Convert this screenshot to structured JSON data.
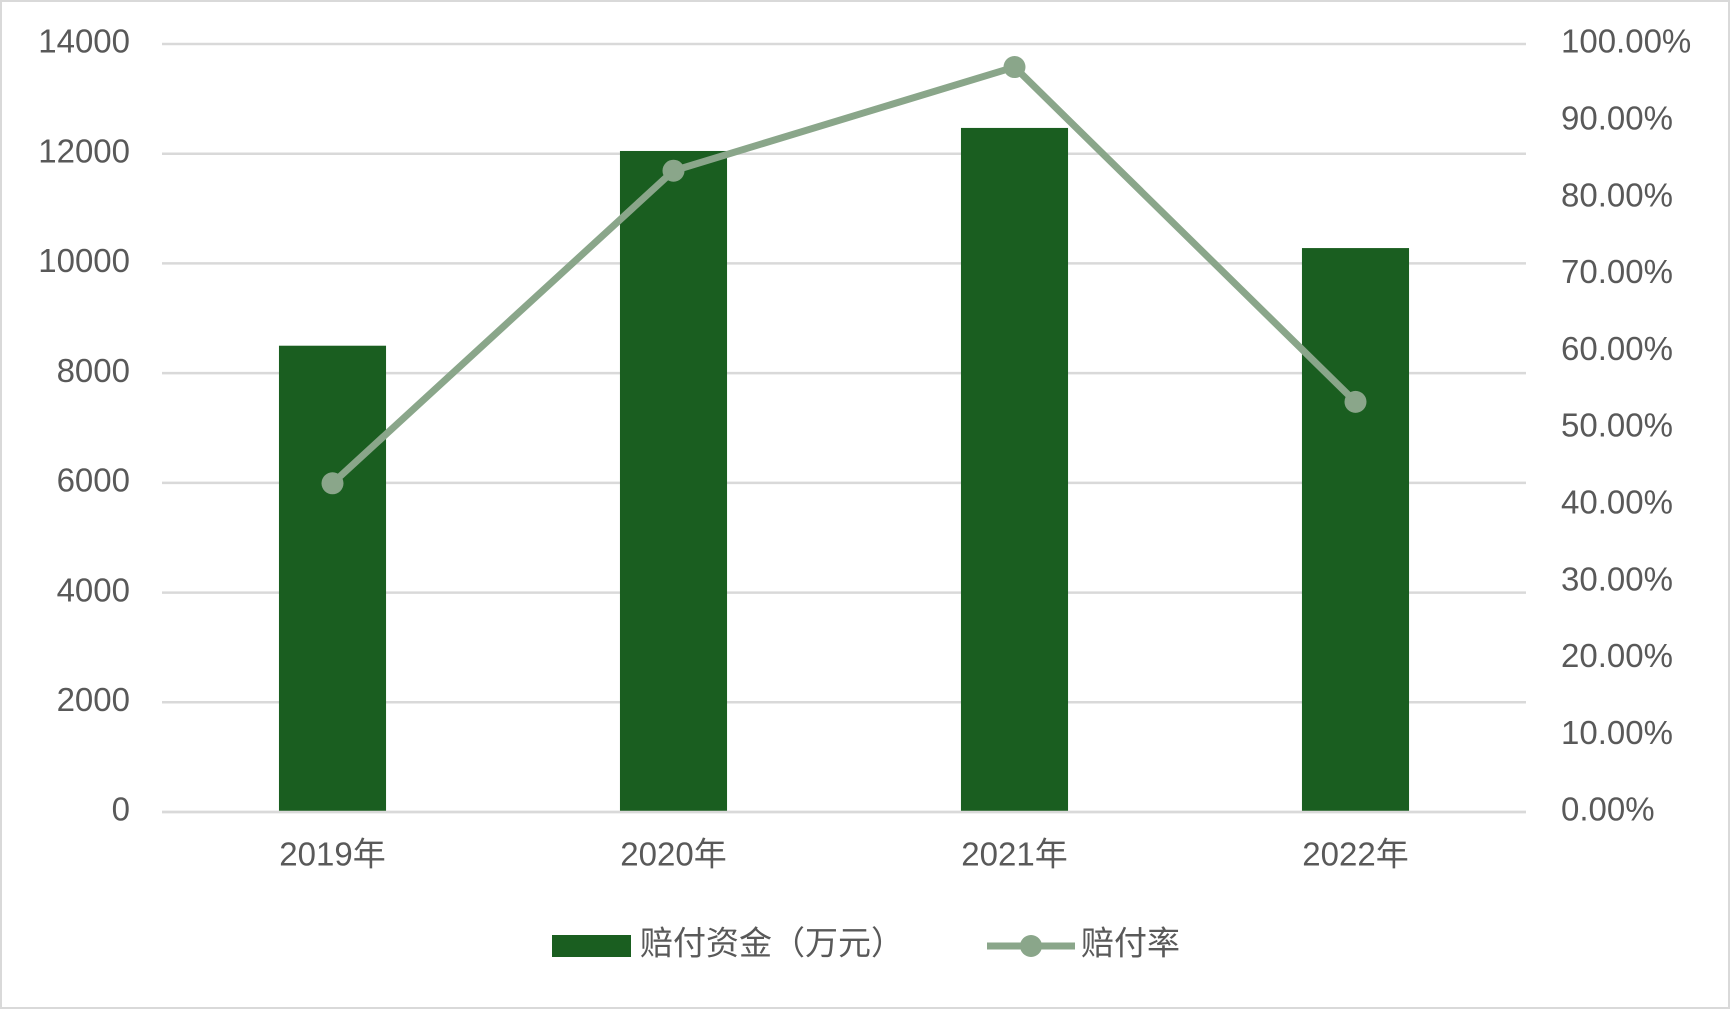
{
  "chart_data": {
    "type": "bar",
    "categories": [
      "2019年",
      "2020年",
      "2021年",
      "2022年"
    ],
    "series": [
      {
        "name": "赔付资金（万元）",
        "type": "bar",
        "color": "#1a5e20",
        "values": [
          8500,
          12050,
          12470,
          10280
        ]
      },
      {
        "name": "赔付率",
        "type": "line",
        "axis": "y2",
        "color": "#8aa68a",
        "values": [
          42.8,
          83.5,
          97.0,
          53.4
        ]
      }
    ],
    "ylim": [
      0,
      14000
    ],
    "yticks": [
      0,
      2000,
      4000,
      6000,
      8000,
      10000,
      12000,
      14000
    ],
    "y2lim": [
      0,
      100
    ],
    "y2ticks": [
      {
        "value": 0,
        "label": "0.00%"
      },
      {
        "value": 10,
        "label": "10.00%"
      },
      {
        "value": 20,
        "label": "20.00%"
      },
      {
        "value": 30,
        "label": "30.00%"
      },
      {
        "value": 40,
        "label": "40.00%"
      },
      {
        "value": 50,
        "label": "50.00%"
      },
      {
        "value": 60,
        "label": "60.00%"
      },
      {
        "value": 70,
        "label": "70.00%"
      },
      {
        "value": 80,
        "label": "80.00%"
      },
      {
        "value": 90,
        "label": "90.00%"
      },
      {
        "value": 100,
        "label": "100.00%"
      }
    ],
    "grid": true,
    "legend": "bottom"
  }
}
